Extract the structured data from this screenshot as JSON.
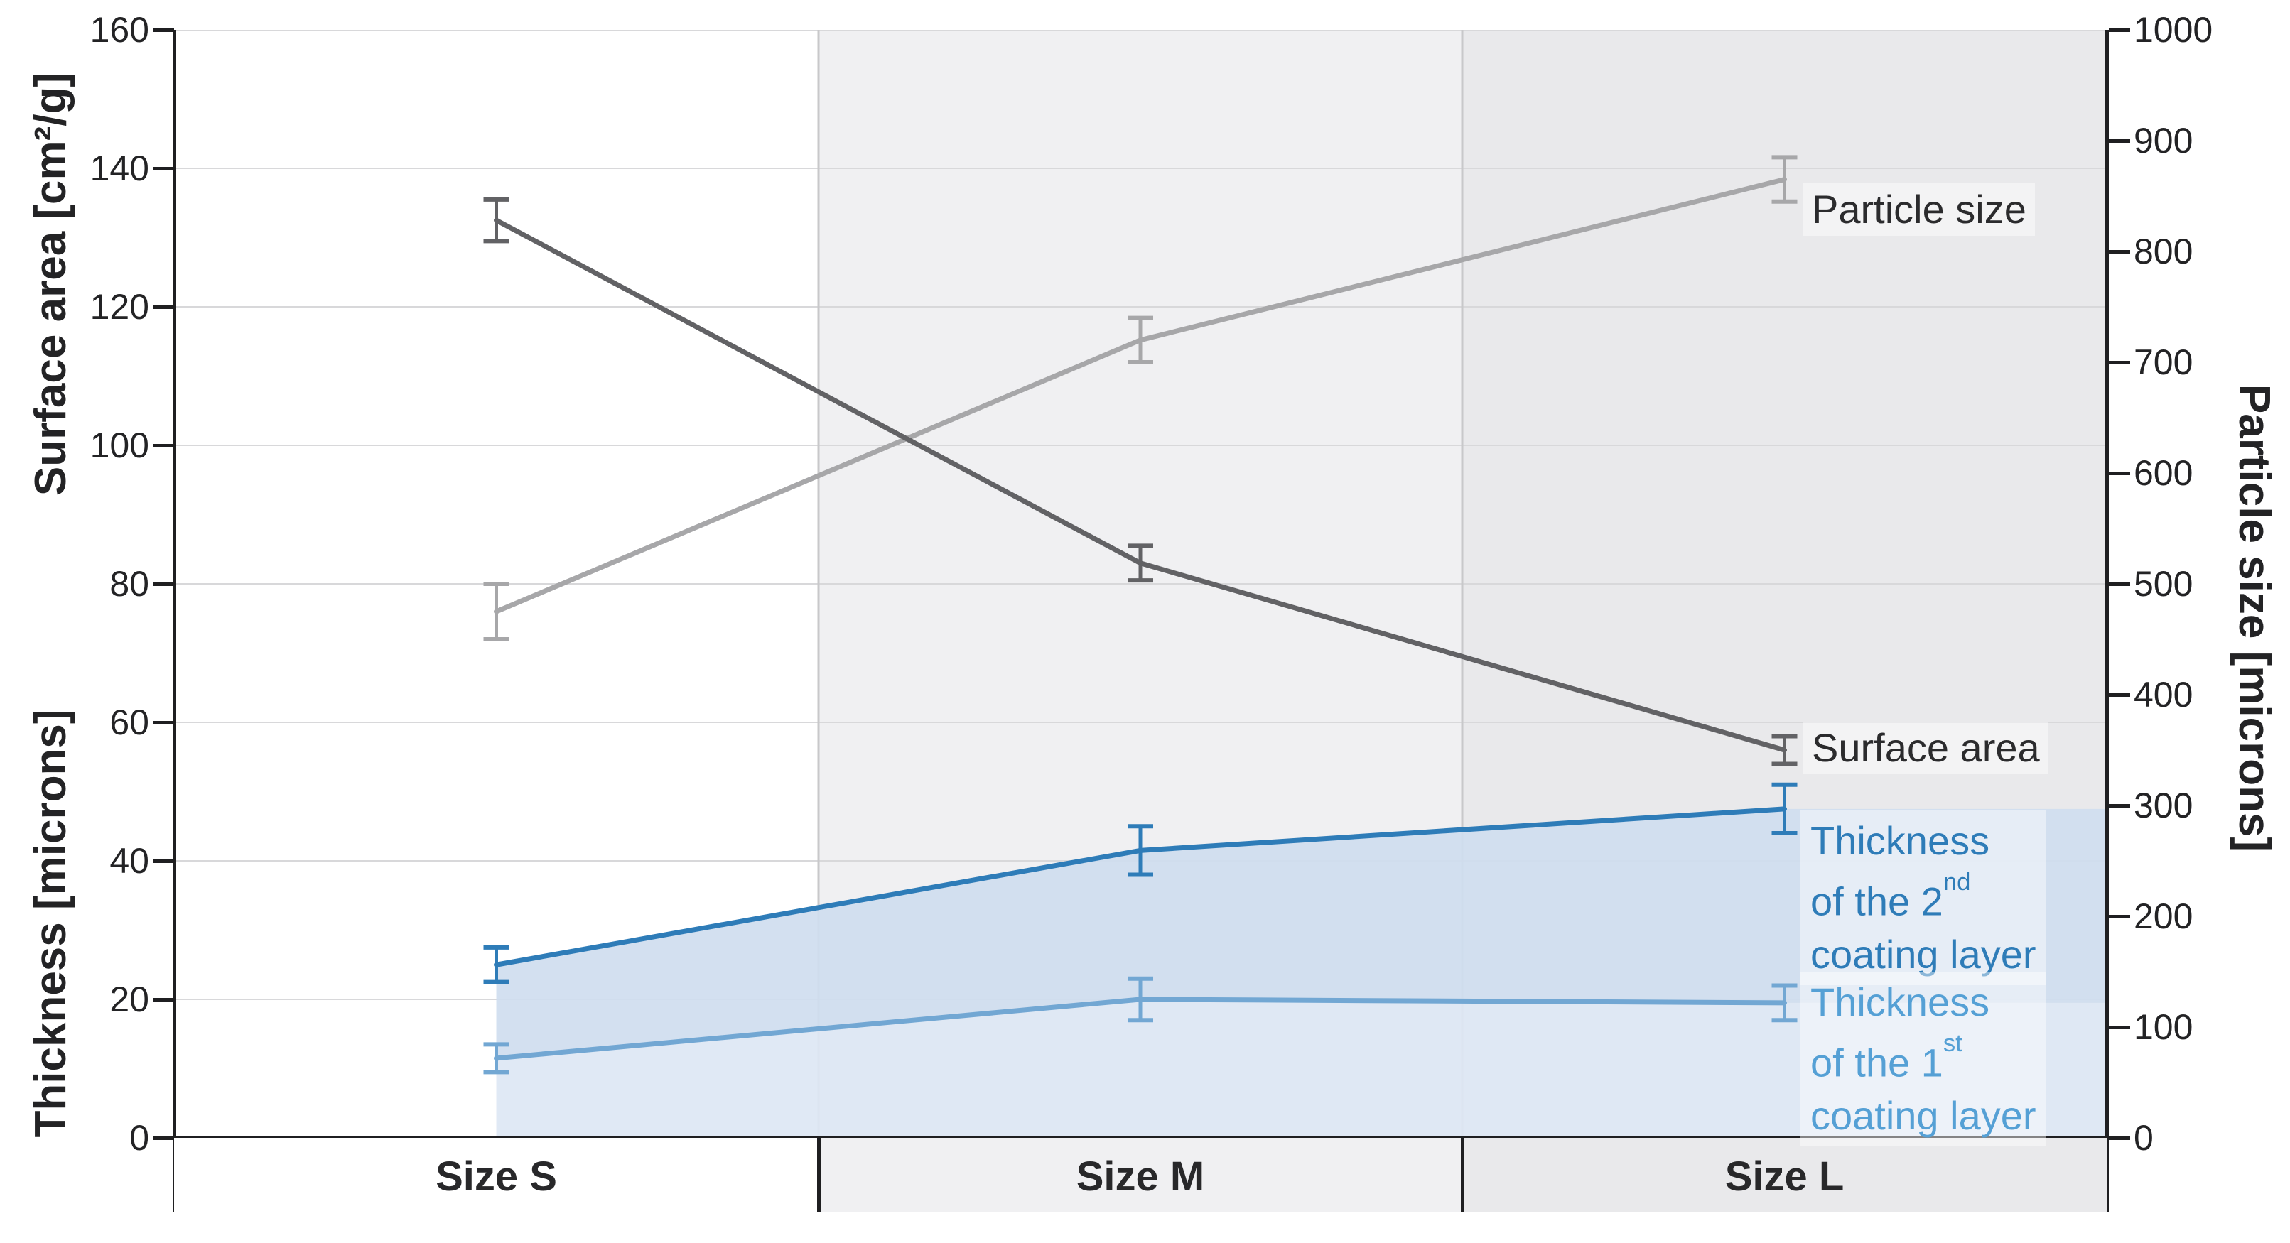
{
  "axes": {
    "left_top_title": "Surface area [cm²/g]",
    "left_bottom_title": "Thickness [microns]",
    "right_title": "Particle size [microns]",
    "left_ticks": [
      "160",
      "140",
      "120",
      "100",
      "80",
      "60",
      "40",
      "20",
      "0"
    ],
    "right_ticks": [
      "1000",
      "900",
      "800",
      "700",
      "600",
      "500",
      "400",
      "300",
      "200",
      "100",
      "0"
    ],
    "x_categories": [
      "Size S",
      "Size M",
      "Size L"
    ]
  },
  "legend": {
    "particle": "Particle size",
    "surface": "Surface area",
    "thickness2_lines": [
      {
        "text": "Thickness",
        "sup": ""
      },
      {
        "text": "of the 2",
        "sup": "nd"
      },
      {
        "text": "coating layer",
        "sup": ""
      }
    ],
    "thickness1_lines": [
      {
        "text": "Thickness",
        "sup": ""
      },
      {
        "text": "of the 1",
        "sup": "st"
      },
      {
        "text": "coating layer",
        "sup": ""
      }
    ]
  },
  "colors": {
    "band_s": "#ffffff",
    "band_m": "#f0f0f2",
    "band_l": "#e9e9eb",
    "gridline": "#d8d8da",
    "section_line": "#c8c8ca",
    "axis": "#1f1f21",
    "surface_line": "#626265",
    "particle_line": "#a7a7a9",
    "thickness2_line": "#2e7cb8",
    "thickness1_line": "#72a7d3",
    "thickness2_fill": "#cfddef",
    "thickness1_fill": "#dde7f4",
    "legend_text_gray": "#2b2b2d",
    "legend_text_blue2": "#2e7cb8",
    "legend_text_blue1": "#55a0d5"
  },
  "chart_data": {
    "type": "line",
    "categories": [
      "Size S",
      "Size M",
      "Size L"
    ],
    "title": "",
    "xlabel": "",
    "left_axis": {
      "labels": [
        "Surface area [cm²/g]",
        "Thickness [microns]"
      ],
      "min": 0,
      "max": 160,
      "tick_step": 20
    },
    "right_axis": {
      "label": "Particle size [microns]",
      "min": 0,
      "max": 1000,
      "tick_step": 100
    },
    "grid": true,
    "legend_position": "right-inline",
    "band_shading": [
      "#ffffff",
      "#f0f0f2",
      "#e9e9eb"
    ],
    "series": [
      {
        "name": "Particle size",
        "axis": "right",
        "unit": "microns",
        "color": "#a7a7a9",
        "values": [
          475,
          720,
          865
        ],
        "errors": [
          25,
          20,
          20
        ]
      },
      {
        "name": "Surface area",
        "axis": "left",
        "unit": "cm²/g",
        "color": "#626265",
        "values": [
          132.5,
          83,
          56
        ],
        "errors": [
          3,
          2.5,
          2
        ]
      },
      {
        "name": "Thickness of the 2nd coating layer",
        "axis": "left",
        "unit": "microns",
        "color": "#2e7cb8",
        "fill": "#cfddef",
        "fill_mode": "to_next_series",
        "values": [
          25,
          41.5,
          47.5
        ],
        "errors": [
          2.5,
          3.5,
          3.5
        ]
      },
      {
        "name": "Thickness of the 1st coating layer",
        "axis": "left",
        "unit": "microns",
        "color": "#72a7d3",
        "fill": "#dde7f4",
        "fill_mode": "to_zero",
        "values": [
          11.5,
          20,
          19.5
        ],
        "errors": [
          2,
          3,
          2.5
        ]
      }
    ]
  }
}
